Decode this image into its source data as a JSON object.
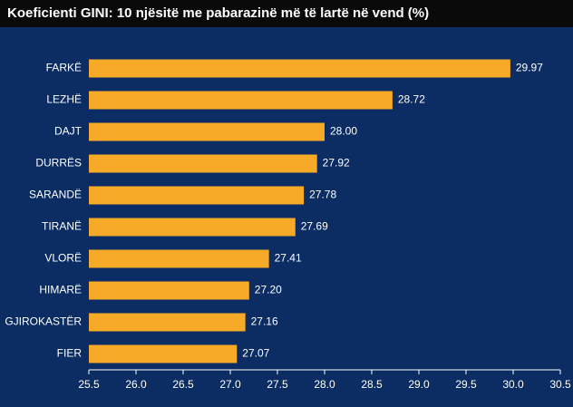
{
  "chart_data": {
    "type": "bar",
    "orientation": "horizontal",
    "title": "Koeficienti GINI: 10 njësitë me pabarazinë më të lartë në vend (%)",
    "categories": [
      "FARKË",
      "LEZHË",
      "DAJT",
      "DURRËS",
      "SARANDË",
      "TIRANË",
      "VLORË",
      "HIMARË",
      "GJIROKASTËR",
      "FIER"
    ],
    "values": [
      29.97,
      28.72,
      28,
      27.92,
      27.78,
      27.69,
      27.41,
      27.2,
      27.16,
      27.07
    ],
    "value_labels": [
      "29.97",
      "28.72",
      "28.00",
      "27.92",
      "27.78",
      "27.69",
      "27.41",
      "27.20",
      "27.16",
      "27.07"
    ],
    "color": "#f7a928",
    "xlim": [
      25.5,
      30.5
    ],
    "xticks": [
      25.5,
      {
        "value": 26,
        "label": "26.0"
      },
      26.5,
      {
        "value": 27,
        "label": "27.0"
      },
      27.5,
      {
        "value": 28,
        "label": "28.0"
      },
      28.5,
      {
        "value": 29,
        "label": "29.0"
      },
      29.5,
      {
        "value": 30,
        "label": "30.0"
      },
      30.5
    ],
    "grid": false
  }
}
